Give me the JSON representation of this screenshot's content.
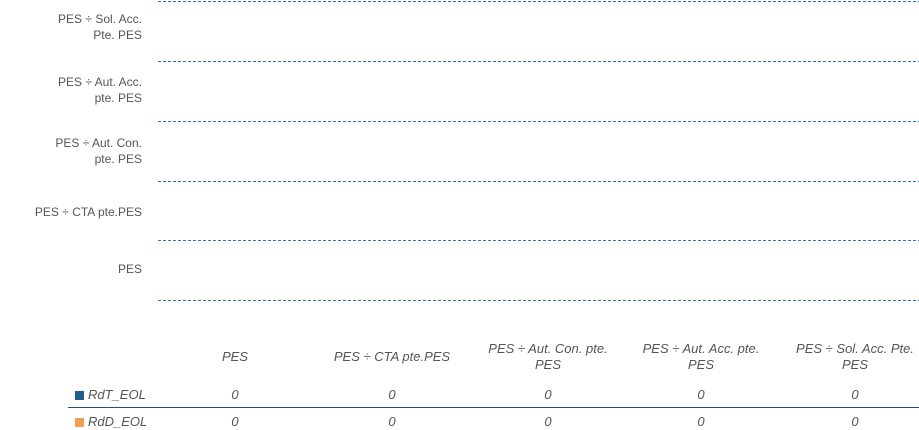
{
  "chart_data": {
    "type": "bar",
    "orientation": "horizontal",
    "categories": [
      "PES ÷ Sol. Acc.\nPte. PES",
      "PES ÷ Aut. Acc.\npte. PES",
      "PES ÷ Aut. Con.\npte. PES",
      "PES ÷ CTA pte.PES",
      "PES"
    ],
    "series": [
      {
        "name": "RdT_EOL",
        "color": "#1f5f8b",
        "values": [
          0,
          0,
          0,
          0,
          0
        ]
      },
      {
        "name": "RdD_EOL",
        "color": "#f0a050",
        "values": [
          0,
          0,
          0,
          0,
          0
        ]
      }
    ],
    "table": {
      "columns": [
        "PES",
        "PES ÷ CTA pte.PES",
        "PES ÷ Aut. Con. pte.\nPES",
        "PES ÷ Aut. Acc. pte.\nPES",
        "PES ÷ Sol. Acc. Pte.\nPES"
      ],
      "rows": [
        {
          "name": "RdT_EOL",
          "values": [
            "0",
            "0",
            "0",
            "0",
            "0"
          ]
        },
        {
          "name": "RdD_EOL",
          "values": [
            "0",
            "0",
            "0",
            "0",
            "0"
          ]
        }
      ]
    },
    "grid": true,
    "gridline_color": "#2e75b6",
    "legend": "table"
  }
}
